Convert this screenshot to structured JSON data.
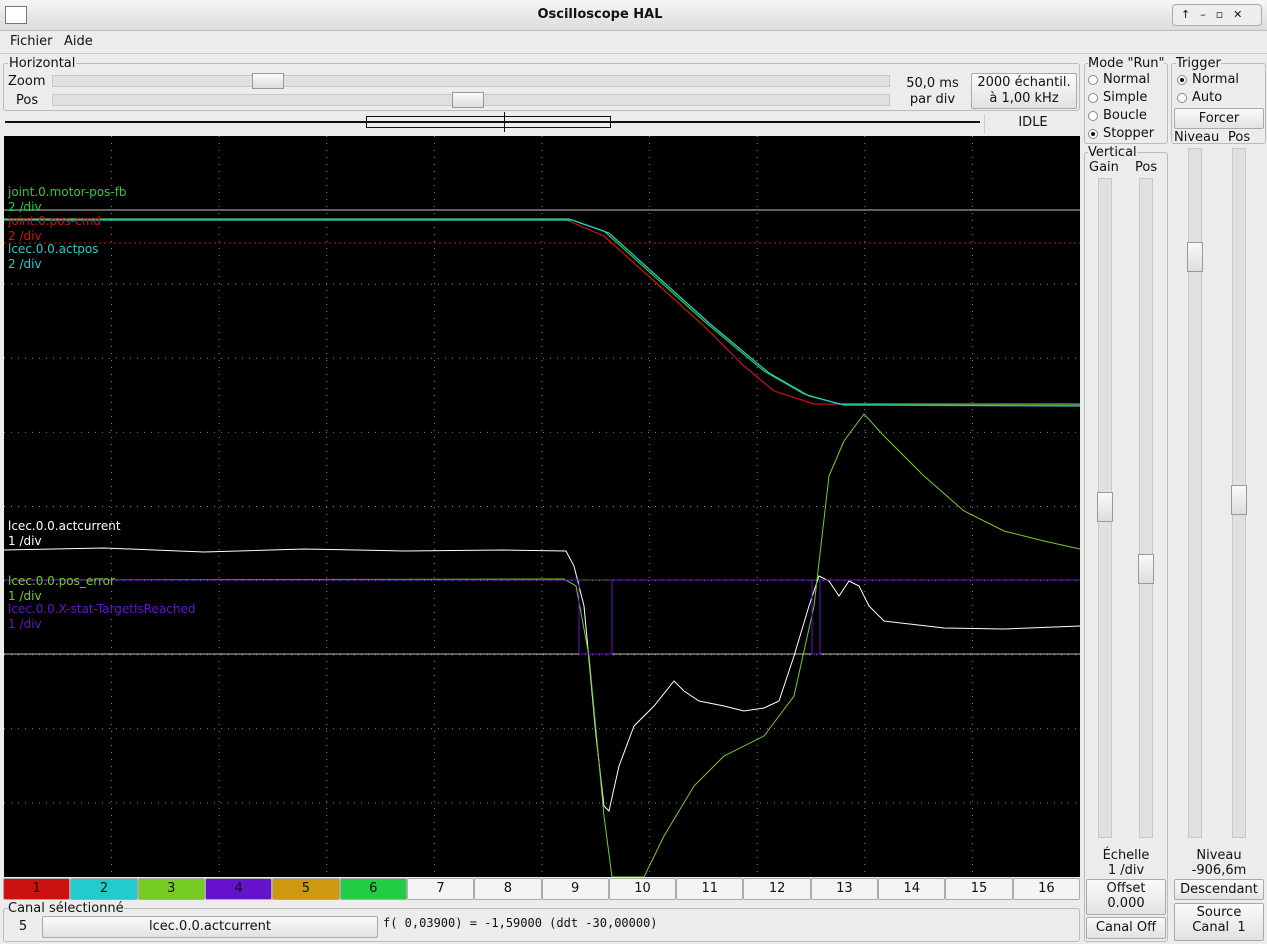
{
  "window": {
    "title": "Oscilloscope HAL"
  },
  "menu": [
    "Fichier",
    "Aide"
  ],
  "horizontal": {
    "title": "Horizontal",
    "zoom_label": "Zoom",
    "pos_label": "Pos",
    "scale": "50,0 ms",
    "scale_unit": "par div",
    "samples": "2000 échantil.",
    "rate": "à 1,00 kHz",
    "status": "IDLE"
  },
  "run_mode": {
    "title": "Mode \"Run\"",
    "options": [
      "Normal",
      "Simple",
      "Boucle",
      "Stopper"
    ],
    "selected": 3
  },
  "trigger": {
    "title": "Trigger",
    "options": [
      "Normal",
      "Auto"
    ],
    "selected": 0,
    "force": "Forcer",
    "level_label": "Niveau",
    "pos_label": "Pos",
    "level_caption": "Niveau",
    "level_value": "-906,6m",
    "edge": "Descendant",
    "source_label": "Source",
    "source_value": "Canal  1"
  },
  "vertical": {
    "title": "Vertical",
    "gain_label": "Gain",
    "pos_label": "Pos",
    "scale_label": "Échelle",
    "scale_value": "1 /div",
    "offset_label": "Offset",
    "offset_value": "0.000",
    "channel_off": "Canal Off"
  },
  "traces": [
    {
      "name": "joint.0.motor-pos-fb",
      "scale": "2 /div",
      "color": "#22cc44"
    },
    {
      "name": "joint.0.pos-cmd",
      "scale": "2 /div",
      "color": "#cc1111"
    },
    {
      "name": "lcec.0.0.actpos",
      "scale": "2 /div",
      "color": "#22cccc"
    },
    {
      "name": "lcec.0.0.actcurrent",
      "scale": "1 /div",
      "color": "#ffffff"
    },
    {
      "name": "lcec.0.0.pos_error",
      "scale": "1 /div",
      "color": "#77cc22"
    },
    {
      "name": "lcec.0.0.X-stat-TargetIsReached",
      "scale": "1 /div",
      "color": "#6611cc"
    }
  ],
  "channels": [
    {
      "label": "1",
      "color": "#cc1111"
    },
    {
      "label": "2",
      "color": "#22cccc"
    },
    {
      "label": "3",
      "color": "#77cc22"
    },
    {
      "label": "4",
      "color": "#6611cc"
    },
    {
      "label": "5",
      "color": "#cc9911"
    },
    {
      "label": "6",
      "color": "#22cc44"
    },
    {
      "label": "7",
      "color": "#f4f4f4"
    },
    {
      "label": "8",
      "color": "#f4f4f4"
    },
    {
      "label": "9",
      "color": "#f4f4f4"
    },
    {
      "label": "10",
      "color": "#f4f4f4"
    },
    {
      "label": "11",
      "color": "#f4f4f4"
    },
    {
      "label": "12",
      "color": "#f4f4f4"
    },
    {
      "label": "13",
      "color": "#f4f4f4"
    },
    {
      "label": "14",
      "color": "#f4f4f4"
    },
    {
      "label": "15",
      "color": "#f4f4f4"
    },
    {
      "label": "16",
      "color": "#f4f4f4"
    }
  ],
  "selected": {
    "label": "Canal sélectionné",
    "number": "5",
    "name": "lcec.0.0.actcurrent",
    "readout": "f( 0,03900) = -1,59000 (ddt -30,00000)"
  }
}
